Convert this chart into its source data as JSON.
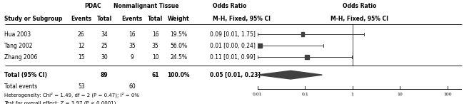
{
  "studies": [
    "Hua 2003",
    "Tang 2002",
    "Zhang 2006"
  ],
  "pdac_events": [
    26,
    12,
    15
  ],
  "pdac_total": [
    34,
    25,
    30
  ],
  "nm_events": [
    16,
    35,
    9
  ],
  "nm_total": [
    16,
    35,
    10
  ],
  "weights": [
    19.5,
    56.0,
    24.5
  ],
  "or_values": [
    0.09,
    0.01,
    0.11
  ],
  "or_lower": [
    0.01,
    0.005,
    0.01
  ],
  "or_upper": [
    1.75,
    0.24,
    0.99
  ],
  "or_labels": [
    "0.09 [0.01, 1.75]",
    "0.01 [0.00, 0.24]",
    "0.11 [0.01, 0.99]"
  ],
  "total_or": 0.05,
  "total_or_lower": 0.01,
  "total_or_upper": 0.23,
  "total_or_label": "0.05 [0.01, 0.23]",
  "total_events_pdac": 53,
  "total_events_nm": 60,
  "total_n_pdac": 89,
  "total_n_nm": 61,
  "heterogeneity_text": "Heterogeneity: Chi² = 1.49, df = 2 (P = 0.47); I² = 0%",
  "overall_effect_text": "Test for overall effect: Z = 3.97 (P < 0.0001)",
  "group_header_pdac": "PDAC",
  "group_header_nm": "Nonmalignant Tissue",
  "odds_ratio_header": "Odds Ratio",
  "box_color": "#404040",
  "diamond_color": "#404040",
  "axis_ticks_log": [
    -2,
    -1,
    0,
    1,
    2
  ],
  "axis_tick_labels": [
    "0.01",
    "0.1",
    "1",
    "10",
    "100"
  ],
  "log_min": -2.0,
  "log_max": 2.3
}
